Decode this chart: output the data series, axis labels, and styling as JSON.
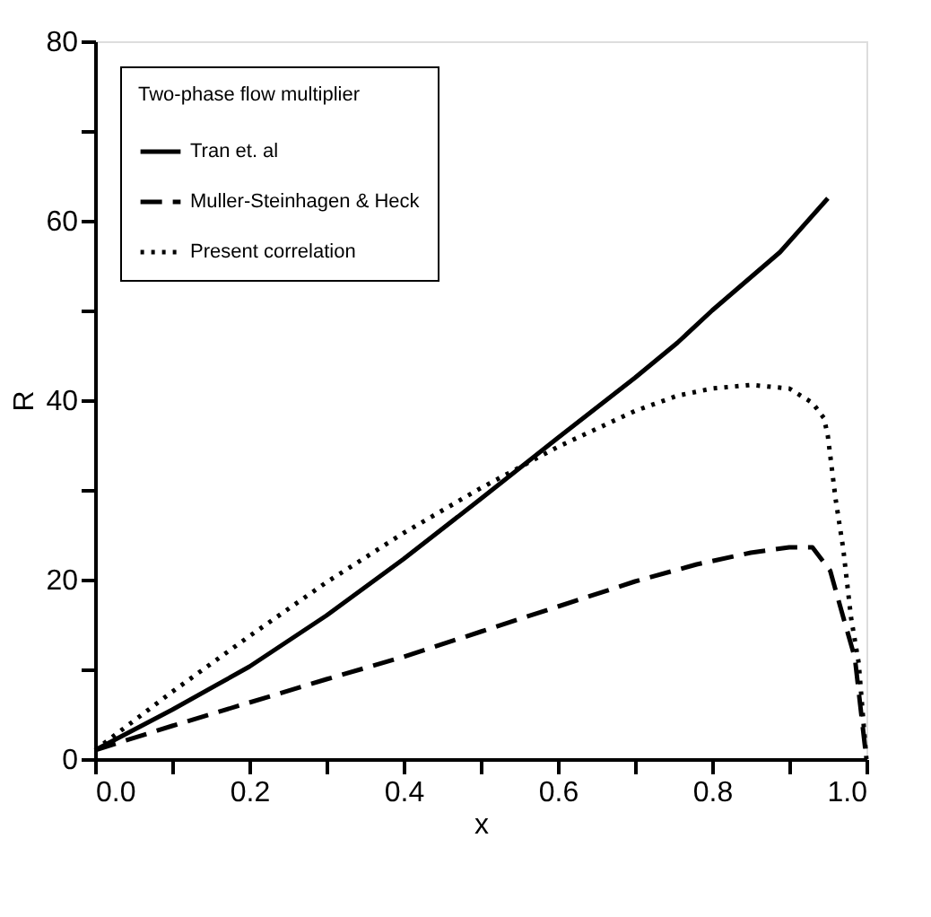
{
  "chart_data": {
    "type": "line",
    "xlabel": "x",
    "ylabel": "R",
    "legend_title": "Two-phase flow multiplier",
    "legend": "top left",
    "grid": false,
    "marker": "none",
    "xlim": [
      0,
      1
    ],
    "ylim": [
      0,
      80
    ],
    "xticks": [
      {
        "value": 0,
        "label": "0.0"
      },
      {
        "value": 0.1,
        "label": null
      },
      {
        "value": 0.2,
        "label": "0.2"
      },
      {
        "value": 0.3,
        "label": null
      },
      {
        "value": 0.4,
        "label": "0.4"
      },
      {
        "value": 0.5,
        "label": null
      },
      {
        "value": 0.6,
        "label": "0.6"
      },
      {
        "value": 0.7,
        "label": null
      },
      {
        "value": 0.8,
        "label": "0.8"
      },
      {
        "value": 0.9,
        "label": null
      },
      {
        "value": 1,
        "label": "1.0"
      }
    ],
    "yticks": [
      0,
      {
        "value": 10,
        "label": null
      },
      20,
      {
        "value": 30,
        "label": null
      },
      40,
      {
        "value": 50,
        "label": null
      },
      60,
      {
        "value": 70,
        "label": null
      },
      80
    ],
    "series": [
      {
        "name": "Tran et. al",
        "color": "#000000",
        "line_style": "solid",
        "x": [
          0,
          0.1,
          0.2,
          0.3,
          0.4,
          0.5,
          0.6,
          0.7,
          0.755,
          0.8,
          0.888,
          0.95
        ],
        "values": [
          1,
          5.5,
          10.3,
          16,
          22.3,
          29,
          35.8,
          42.5,
          46.4,
          50,
          56.5,
          62.5
        ]
      },
      {
        "name": "Muller-Steinhagen & Heck",
        "color": "#000000",
        "line_style": "dashed",
        "x": [
          0,
          0.1,
          0.2,
          0.3,
          0.4,
          0.5,
          0.6,
          0.7,
          0.78,
          0.85,
          0.9,
          0.93,
          0.953,
          0.97,
          0.985,
          0.992,
          1
        ],
        "values": [
          1,
          3.7,
          6.3,
          8.9,
          11.4,
          14.2,
          17,
          19.8,
          21.7,
          23,
          23.6,
          23.6,
          21,
          15.8,
          11.3,
          6,
          0
        ]
      },
      {
        "name": "Present correlation",
        "color": "#000000",
        "line_style": "dotted",
        "x": [
          0,
          0.1,
          0.2,
          0.3,
          0.4,
          0.5,
          0.6,
          0.7,
          0.755,
          0.8,
          0.85,
          0.9,
          0.93,
          0.945,
          0.95,
          0.96,
          0.97,
          0.98,
          0.99,
          1
        ],
        "values": [
          1,
          7.5,
          13.7,
          19.7,
          25.2,
          30.2,
          34.8,
          38.8,
          40.5,
          41.3,
          41.7,
          41.3,
          39.7,
          38,
          36,
          29,
          23.4,
          15.8,
          10.7,
          0
        ]
      }
    ]
  }
}
